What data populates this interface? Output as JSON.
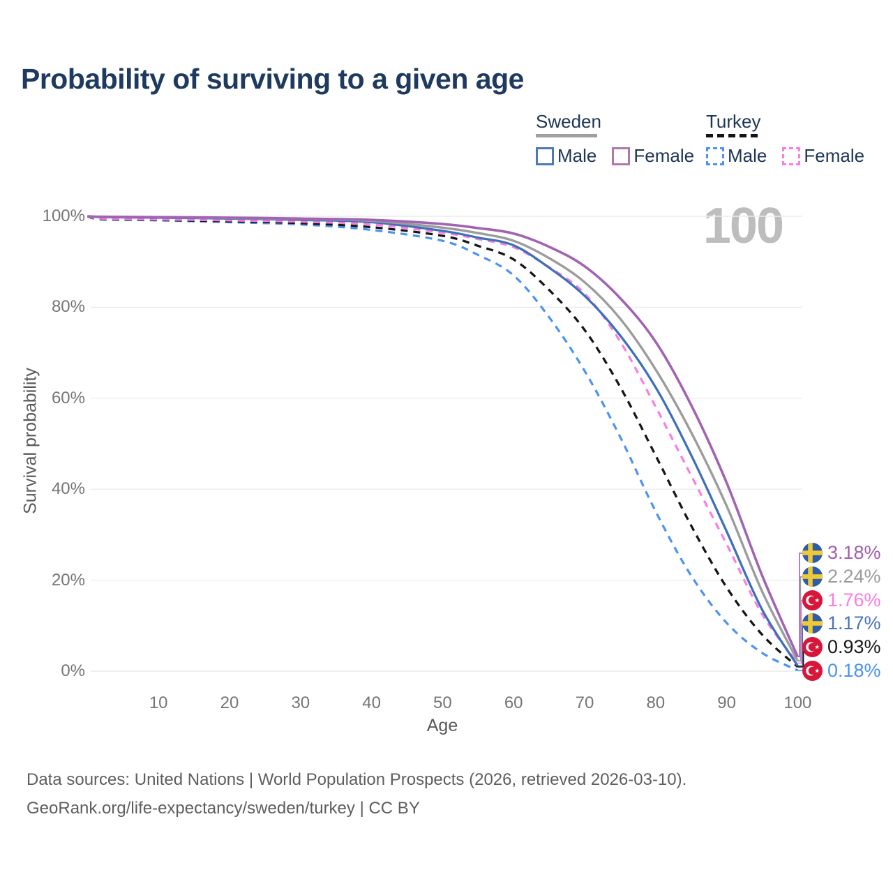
{
  "title": "Probability of surviving to a given age",
  "watermark": "100",
  "legend": {
    "groups": [
      {
        "name": "Sweden",
        "key": "sweden",
        "line_color": "#a0a0a0",
        "line_style": "solid",
        "items": [
          {
            "label": "Male",
            "color": "#4a7ab8",
            "dashed": false
          },
          {
            "label": "Female",
            "color": "#b177ad",
            "dashed": false
          }
        ]
      },
      {
        "name": "Turkey",
        "key": "turkey",
        "line_color": "#141414",
        "line_style": "dashed",
        "items": [
          {
            "label": "Male",
            "color": "#4a93f2",
            "dashed": true
          },
          {
            "label": "Female",
            "color": "#fc7ce3",
            "dashed": true
          }
        ]
      }
    ]
  },
  "axes": {
    "y_title": "Survival probability",
    "x_title": "Age",
    "y_ticks": [
      "0%",
      "20%",
      "40%",
      "60%",
      "80%",
      "100%"
    ],
    "y_tick_values": [
      0,
      20,
      40,
      60,
      80,
      100
    ],
    "x_ticks": [
      "10",
      "20",
      "30",
      "40",
      "50",
      "60",
      "70",
      "80",
      "90",
      "100"
    ],
    "x_tick_values": [
      10,
      20,
      30,
      40,
      50,
      60,
      70,
      80,
      90,
      100
    ]
  },
  "chart_data": {
    "type": "line",
    "title": "Probability of surviving to a given age",
    "xlabel": "Age",
    "ylabel": "Survival probability",
    "xlim": [
      0,
      100
    ],
    "ylim": [
      0,
      100
    ],
    "grid": "horizontal",
    "legend_position": "top-right",
    "x": [
      0,
      2,
      10,
      20,
      30,
      40,
      50,
      55,
      60,
      65,
      70,
      75,
      80,
      85,
      90,
      95,
      100
    ],
    "draw_order": [
      "turkey_male",
      "turkey_both",
      "turkey_female",
      "sweden_male",
      "sweden_both",
      "sweden_female"
    ],
    "series": [
      {
        "key": "sweden_female",
        "name": "Sweden Female",
        "color": "#a263b2",
        "dashed": false,
        "width": 3.6,
        "values": [
          100,
          99.9,
          99.8,
          99.7,
          99.5,
          99.2,
          98.3,
          97.4,
          96.2,
          93.3,
          89.0,
          82.0,
          72.4,
          58.5,
          41.4,
          21.0,
          3.18
        ]
      },
      {
        "key": "sweden_both",
        "name": "Sweden Both sexes",
        "color": "#9c9c9c",
        "dashed": false,
        "width": 3.4,
        "values": [
          100,
          99.85,
          99.8,
          99.6,
          99.4,
          99.0,
          97.5,
          96.3,
          94.6,
          90.8,
          85.5,
          77.5,
          66.3,
          52.5,
          36.3,
          17.5,
          2.24
        ]
      },
      {
        "key": "sweden_male",
        "name": "Sweden Male",
        "color": "#3e70ba",
        "dashed": false,
        "width": 3.3,
        "values": [
          100,
          99.8,
          99.7,
          99.5,
          99.2,
          98.7,
          96.8,
          95.3,
          93.6,
          88.7,
          82.5,
          73.8,
          62.4,
          47.5,
          30.7,
          13.5,
          1.17
        ]
      },
      {
        "key": "turkey_female",
        "name": "Turkey Female",
        "color": "#fc7ce3",
        "dashed": true,
        "width": 3.2,
        "values": [
          100,
          99.5,
          99.3,
          99.1,
          98.8,
          98.2,
          96.4,
          95.0,
          93.2,
          88.8,
          83.0,
          72.5,
          58.1,
          43.0,
          27.9,
          12.5,
          1.76
        ]
      },
      {
        "key": "turkey_both",
        "name": "Turkey Both sexes",
        "color": "#161616",
        "dashed": true,
        "width": 3.3,
        "values": [
          100,
          99.4,
          99.2,
          98.9,
          98.5,
          97.6,
          95.7,
          93.5,
          90.5,
          83.8,
          75.0,
          62.5,
          47.4,
          32.0,
          18.4,
          8.0,
          0.93
        ]
      },
      {
        "key": "turkey_male",
        "name": "Turkey Male",
        "color": "#4a93f2",
        "dashed": true,
        "width": 3.2,
        "values": [
          100,
          99.3,
          99.1,
          98.7,
          98.2,
          97.0,
          94.6,
          91.5,
          87.0,
          77.8,
          66.0,
          51.5,
          35.1,
          21.0,
          10.6,
          4.0,
          0.18
        ]
      }
    ]
  },
  "end_labels": [
    {
      "series": "sweden_female",
      "flag": "sweden",
      "country": "Sweden",
      "value": "3.18%",
      "color": "#a05fae"
    },
    {
      "series": "sweden_both",
      "flag": "sweden",
      "country": "Sweden",
      "value": "2.24%",
      "color": "#9c9c9c"
    },
    {
      "series": "turkey_female",
      "flag": "turkey",
      "country": "Turkey",
      "value": "1.76%",
      "color": "#fc7ce3"
    },
    {
      "series": "sweden_male",
      "flag": "sweden",
      "country": "Sweden",
      "value": "1.17%",
      "color": "#4a74b8"
    },
    {
      "series": "turkey_both",
      "flag": "turkey",
      "country": "Turkey",
      "value": "0.93%",
      "color": "#1a1a1a"
    },
    {
      "series": "turkey_male",
      "flag": "turkey",
      "country": "Turkey",
      "value": "0.18%",
      "color": "#4a93f2"
    }
  ],
  "footer": {
    "line1": "Data sources: United Nations | World Population Prospects (2026, retrieved 2026-03-10).",
    "line2": "GeoRank.org/life-expectancy/sweden/turkey | CC BY"
  }
}
